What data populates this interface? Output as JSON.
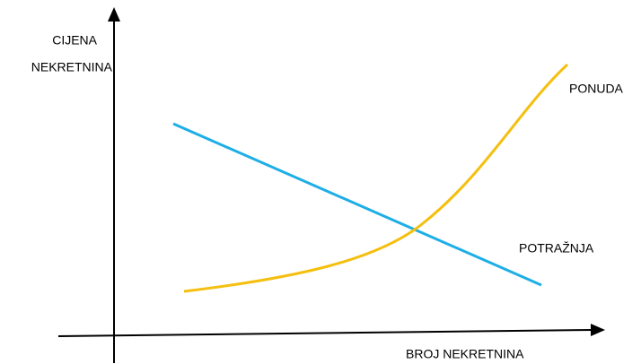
{
  "axes": {
    "y_label": [
      "CIJENA",
      "NEKRETNINA"
    ],
    "x_label": "BROJ NEKRETNINA"
  },
  "curves": {
    "supply": "PONUDA",
    "demand": "POTRAŽNJA"
  }
}
